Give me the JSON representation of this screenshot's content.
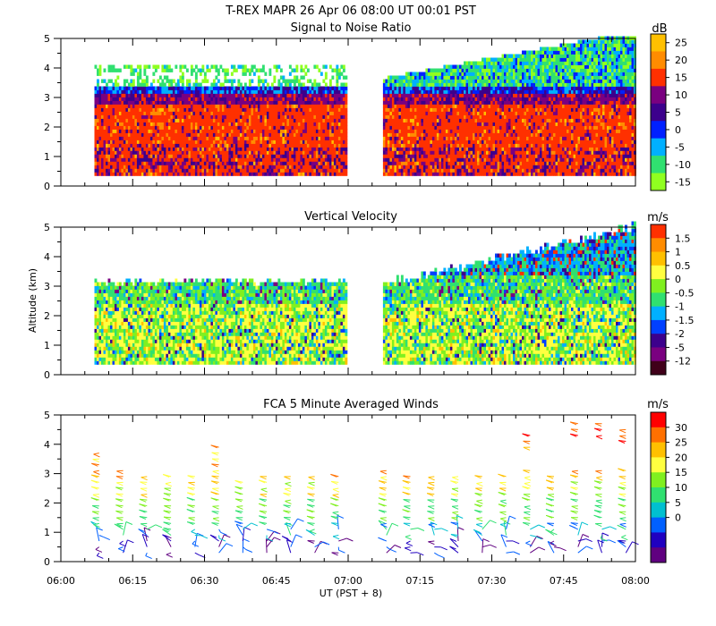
{
  "figure": {
    "title": "T-REX  MAPR 26 Apr 06  08:00 UT  00:01  PST",
    "xlabel": "UT  (PST + 8)",
    "ylabel": "Altitude (km)",
    "x_ticks": [
      "06:00",
      "06:15",
      "06:30",
      "06:45",
      "07:00",
      "07:15",
      "07:30",
      "07:45",
      "08:00"
    ],
    "y_ticks": [
      "0",
      "1",
      "2",
      "3",
      "4",
      "5"
    ]
  },
  "chart_data": [
    {
      "type": "heatmap",
      "title": "Signal to Noise Ratio",
      "unit": "dB",
      "xlabel": "UT  (PST + 8)",
      "ylabel": "Altitude (km)",
      "xlim": [
        "06:00",
        "08:00"
      ],
      "ylim": [
        0,
        5
      ],
      "data_gap": [
        "07:00",
        "07:07"
      ],
      "colorbar": {
        "labels": [
          "25",
          "20",
          "15",
          "10",
          "5",
          "0",
          "-5",
          "-10",
          "-15"
        ],
        "colors": [
          "#ffc000",
          "#ff8c00",
          "#ff3000",
          "#7a0080",
          "#3c008c",
          "#0020ff",
          "#00b0ff",
          "#30e070",
          "#90ff20"
        ]
      },
      "profile": [
        {
          "altitude_km": 0.5,
          "snr_db": 16
        },
        {
          "altitude_km": 1.0,
          "snr_db": 17
        },
        {
          "altitude_km": 1.5,
          "snr_db": 18
        },
        {
          "altitude_km": 2.0,
          "snr_db": 18
        },
        {
          "altitude_km": 2.5,
          "snr_db": 17
        },
        {
          "altitude_km": 2.9,
          "snr_db": 9
        },
        {
          "altitude_km": 3.2,
          "snr_db": 2
        },
        {
          "altitude_km": 3.5,
          "snr_db": -10
        },
        {
          "altitude_km": 4.0,
          "snr_db": -13
        }
      ]
    },
    {
      "type": "heatmap",
      "title": "Vertical Velocity",
      "unit": "m/s",
      "xlabel": "UT  (PST + 8)",
      "ylabel": "Altitude (km)",
      "xlim": [
        "06:00",
        "08:00"
      ],
      "ylim": [
        0,
        5
      ],
      "data_gap": [
        "07:00",
        "07:07"
      ],
      "colorbar": {
        "labels": [
          "1.5",
          "1",
          "0.5",
          "0",
          "-0.5",
          "-1",
          "-1.5",
          "-2",
          "-5",
          "-12"
        ],
        "colors": [
          "#ff3000",
          "#ff8c00",
          "#ffc000",
          "#ffff40",
          "#80f020",
          "#30e070",
          "#00b0ff",
          "#0040ff",
          "#3c008c",
          "#7a0080",
          "#40001a"
        ]
      }
    },
    {
      "type": "scatter",
      "title": "FCA 5 Minute Averaged Winds",
      "unit": "m/s",
      "xlabel": "UT  (PST + 8)",
      "ylabel": "Altitude (km)",
      "xlim": [
        "06:00",
        "08:00"
      ],
      "ylim": [
        0,
        5
      ],
      "colorbar": {
        "labels": [
          "30",
          "25",
          "20",
          "15",
          "10",
          "5",
          "0"
        ],
        "colors": [
          "#ff0000",
          "#ff7000",
          "#ffc000",
          "#ffff40",
          "#80f020",
          "#30e070",
          "#00c0d0",
          "#0060ff",
          "#2000c0",
          "#600080"
        ]
      },
      "profile_times": [
        "06:08",
        "06:13",
        "06:18",
        "06:23",
        "06:28",
        "06:33",
        "06:38",
        "06:43",
        "06:48",
        "06:53",
        "06:58",
        "07:08",
        "07:13",
        "07:18",
        "07:23",
        "07:28",
        "07:33",
        "07:38",
        "07:43",
        "07:48",
        "07:53",
        "07:58"
      ],
      "profile_tops_km": [
        3.9,
        3.3,
        3.0,
        3.0,
        3.0,
        4.0,
        2.8,
        3.0,
        3.0,
        3.1,
        3.0,
        3.2,
        3.1,
        3.0,
        3.0,
        3.0,
        3.0,
        4.4,
        3.0,
        4.9,
        4.8,
        4.6
      ]
    }
  ]
}
